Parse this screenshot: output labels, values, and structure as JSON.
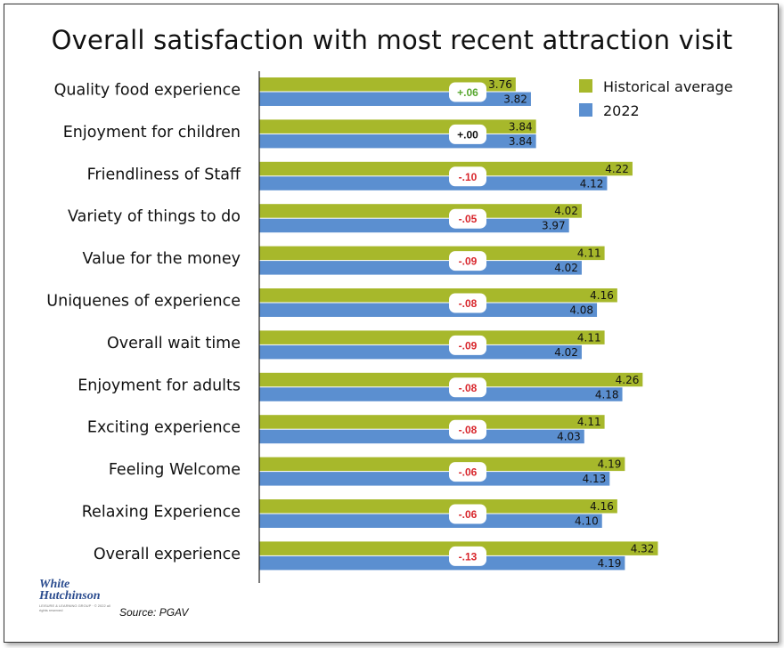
{
  "chart_data": {
    "type": "bar",
    "orientation": "horizontal",
    "title": "Overall satisfaction with most recent attraction visit",
    "categories": [
      "Quality food experience",
      "Enjoyment for children",
      "Friendliness of Staff",
      "Variety of things to do",
      "Value for the money",
      "Uniquenes of experience",
      "Overall wait time",
      "Enjoyment for adults",
      "Exciting experience",
      "Feeling Welcome",
      "Relaxing Experience",
      "Overall experience"
    ],
    "series": [
      {
        "name": "Historical average",
        "color": "#a7b82b",
        "values": [
          3.76,
          3.84,
          4.22,
          4.02,
          4.11,
          4.16,
          4.11,
          4.26,
          4.11,
          4.19,
          4.16,
          4.32
        ],
        "labels": [
          "3.76",
          "3.84",
          "4.22",
          "4.02",
          "4.11",
          "4.16",
          "4.11",
          "4.26",
          "4.11",
          "4.19",
          "4.16",
          "4.32"
        ]
      },
      {
        "name": "2022",
        "color": "#5b8fd0",
        "values": [
          3.82,
          3.84,
          4.12,
          3.97,
          4.02,
          4.08,
          4.02,
          4.18,
          4.03,
          4.13,
          4.1,
          4.19
        ],
        "labels": [
          "3.82",
          "3.84",
          "4.12",
          "3.97",
          "4.02",
          "4.08",
          "4.02",
          "4.18",
          "4.03",
          "4.13",
          "4.10",
          "4.19"
        ]
      }
    ],
    "differences": [
      "+.06",
      "+.00",
      "-.10",
      "-.05",
      "-.09",
      "-.08",
      "-.09",
      "-.08",
      "-.08",
      "-.06",
      "-.06",
      "-.13"
    ],
    "difference_colors": {
      "positive": "#5aa832",
      "neutral": "#111111",
      "negative": "#d8262c"
    },
    "xlim": [
      2.75,
      4.6
    ],
    "legend_placement": "top-right",
    "grid": false
  },
  "footer": {
    "logo_line1": "White",
    "logo_line2": "Hutchinson",
    "logo_sub": "LEISURE & LEARNING GROUP · © 2022 all rights reserved",
    "source": "Source: PGAV"
  }
}
